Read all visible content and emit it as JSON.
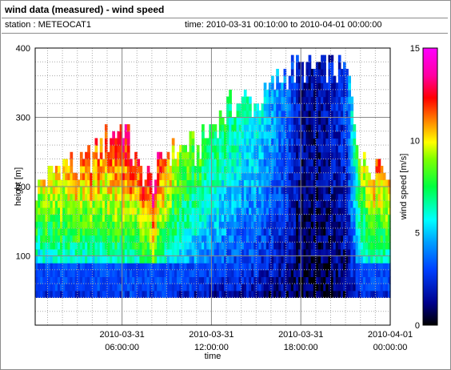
{
  "header": {
    "title": "wind data (measured) - wind speed",
    "station": "station : METEOCAT1",
    "time_range": "time: 2010-03-31 00:10:00 to 2010-04-01 00:00:00"
  },
  "chart_data": {
    "type": "heatmap",
    "title": "wind data (measured) - wind speed",
    "xlabel": "time",
    "ylabel": "height [m]",
    "colorbar_label": "wind speed [m/s]",
    "x_ticks": [
      {
        "value": 6,
        "date": "2010-03-31",
        "time": "06:00:00"
      },
      {
        "value": 12,
        "date": "2010-03-31",
        "time": "12:00:00"
      },
      {
        "value": 18,
        "date": "2010-03-31",
        "time": "18:00:00"
      },
      {
        "value": 24,
        "date": "2010-04-01",
        "time": "00:00:00"
      }
    ],
    "y_ticks": [
      100,
      200,
      300,
      400
    ],
    "colorbar_ticks": [
      0,
      5,
      10,
      15
    ],
    "xlim_hours": [
      0.17,
      24
    ],
    "ylim": [
      0,
      400
    ],
    "color_range": [
      0,
      15
    ],
    "grid": true,
    "height_bins_start": 40,
    "height_bin_size": 10,
    "max_height_by_hour": [
      [
        0,
        190
      ],
      [
        1,
        210
      ],
      [
        2,
        235
      ],
      [
        3,
        220
      ],
      [
        4,
        240
      ],
      [
        5,
        265
      ],
      [
        6,
        285
      ],
      [
        7,
        215
      ],
      [
        8,
        205
      ],
      [
        9,
        245
      ],
      [
        10,
        255
      ],
      [
        11,
        245
      ],
      [
        12,
        285
      ],
      [
        13,
        305
      ],
      [
        14,
        320
      ],
      [
        15,
        315
      ],
      [
        16,
        340
      ],
      [
        17,
        360
      ],
      [
        18,
        365
      ],
      [
        19,
        365
      ],
      [
        20,
        365
      ],
      [
        21,
        360
      ],
      [
        22,
        230
      ],
      [
        23,
        230
      ],
      [
        24,
        225
      ]
    ],
    "dominant_speed_by_hour": [
      [
        0,
        8.5
      ],
      [
        1,
        9.5
      ],
      [
        2,
        10
      ],
      [
        3,
        10.5
      ],
      [
        4,
        10.5
      ],
      [
        5,
        11
      ],
      [
        6,
        12
      ],
      [
        7,
        11
      ],
      [
        8,
        12.5
      ],
      [
        9,
        10
      ],
      [
        10,
        8.5
      ],
      [
        11,
        7.5
      ],
      [
        12,
        7
      ],
      [
        13,
        6.5
      ],
      [
        14,
        6
      ],
      [
        15,
        5.5
      ],
      [
        16,
        4.5
      ],
      [
        17,
        3.5
      ],
      [
        18,
        1.5
      ],
      [
        19,
        1.5
      ],
      [
        20,
        2
      ],
      [
        21,
        3
      ],
      [
        22,
        9
      ],
      [
        23,
        10.5
      ],
      [
        24,
        9.5
      ]
    ],
    "colorscale": [
      [
        0,
        "#000000"
      ],
      [
        0.08,
        "#00008c"
      ],
      [
        0.2,
        "#0040ff"
      ],
      [
        0.3,
        "#00a0ff"
      ],
      [
        0.38,
        "#00ffff"
      ],
      [
        0.5,
        "#00ff40"
      ],
      [
        0.6,
        "#80ff00"
      ],
      [
        0.66,
        "#ffff00"
      ],
      [
        0.74,
        "#ff8000"
      ],
      [
        0.82,
        "#ff0000"
      ],
      [
        0.9,
        "#ff00a0"
      ],
      [
        1,
        "#ff00ff"
      ]
    ]
  }
}
